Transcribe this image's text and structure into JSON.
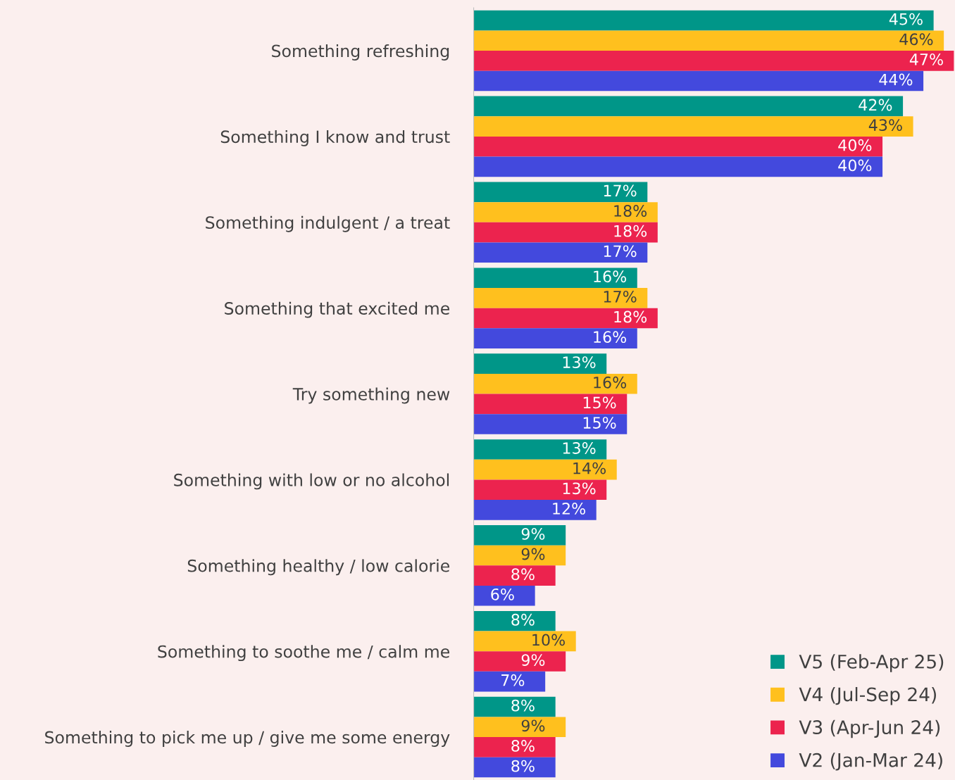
{
  "chart_data": {
    "type": "bar",
    "orientation": "horizontal",
    "categories": [
      "Something refreshing",
      "Something I know and trust",
      "Something indulgent / a treat",
      "Something that excited me",
      "Try something new",
      "Something with low or no alcohol",
      "Something healthy / low calorie",
      "Something to soothe me / calm me",
      "Something to pick me up / give me some energy"
    ],
    "series": [
      {
        "name": "V5 (Feb-Apr 25)",
        "color": "#009688",
        "values": [
          45,
          42,
          17,
          16,
          13,
          13,
          9,
          8,
          8
        ],
        "value_labels": [
          "45%",
          "42%",
          "17%",
          "16%",
          "13%",
          "13%",
          "9%",
          "8%",
          "8%"
        ]
      },
      {
        "name": "V4 (Jul-Sep 24)",
        "color": "#ffc01e",
        "values": [
          46,
          43,
          18,
          17,
          16,
          14,
          9,
          10,
          9
        ],
        "value_labels": [
          "46%",
          "43%",
          "18%",
          "17%",
          "16%",
          "14%",
          "9%",
          "10%",
          "9%"
        ]
      },
      {
        "name": "V3 (Apr-Jun 24)",
        "color": "#ec234e",
        "values": [
          47,
          40,
          18,
          18,
          15,
          13,
          8,
          9,
          8
        ],
        "value_labels": [
          "47%",
          "40%",
          "18%",
          "18%",
          "15%",
          "13%",
          "8%",
          "9%",
          "8%"
        ]
      },
      {
        "name": "V2 (Jan-Mar 24)",
        "color": "#4349dd",
        "values": [
          44,
          40,
          17,
          16,
          15,
          12,
          6,
          7,
          8
        ],
        "value_labels": [
          "44%",
          "40%",
          "17%",
          "16%",
          "15%",
          "12%",
          "6%",
          "7%",
          "8%"
        ]
      }
    ],
    "legend": "bottom right",
    "grid": false,
    "tick_labels": "y"
  }
}
